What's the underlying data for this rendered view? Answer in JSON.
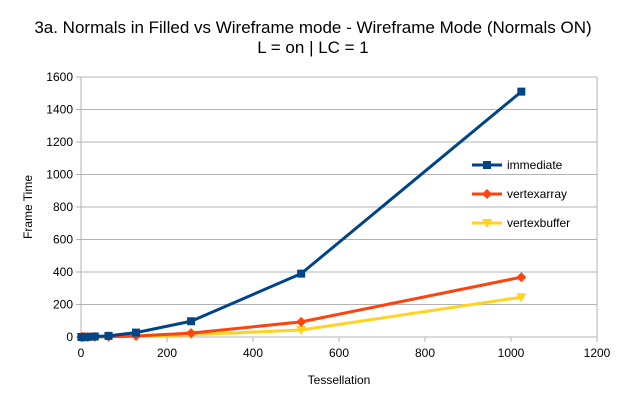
{
  "chart_data": {
    "type": "line",
    "title": "3a. Normals in Filled vs Wireframe mode - Wireframe Mode (Normals ON)",
    "subtitle": "L = on | LC = 1",
    "xlabel": "Tessellation",
    "ylabel": "Frame Time",
    "xlim": [
      0,
      1200
    ],
    "ylim": [
      0,
      1600
    ],
    "xticks": [
      0,
      200,
      400,
      600,
      800,
      1000,
      1200
    ],
    "yticks": [
      0,
      200,
      400,
      600,
      800,
      1000,
      1200,
      1400,
      1600
    ],
    "grid": "horizontal",
    "legend_position": "right",
    "x": [
      1,
      2,
      4,
      8,
      16,
      32,
      64,
      128,
      256,
      512,
      1024
    ],
    "series": [
      {
        "name": "immediate",
        "color": "#004586",
        "marker": "square",
        "values": [
          0,
          0,
          0,
          0,
          1,
          3,
          7,
          27,
          97,
          390,
          1510
        ]
      },
      {
        "name": "vertexarray",
        "color": "#ff420e",
        "marker": "diamond",
        "values": [
          0,
          0,
          0,
          0,
          0,
          1,
          2,
          6,
          24,
          93,
          368
        ]
      },
      {
        "name": "vertexbuffer",
        "color": "#ffd320",
        "marker": "triangle-down",
        "values": [
          0,
          0,
          0,
          0,
          0,
          1,
          2,
          4,
          14,
          43,
          245
        ]
      }
    ]
  }
}
